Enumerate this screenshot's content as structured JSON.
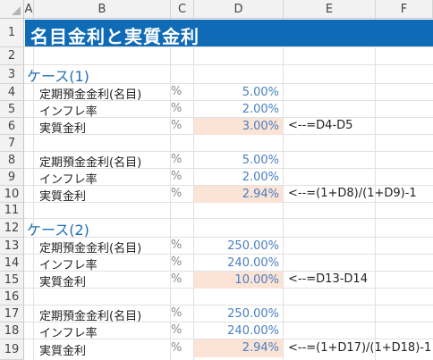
{
  "columns": [
    "A",
    "B",
    "C",
    "D",
    "E",
    "F"
  ],
  "rows": [
    "1",
    "2",
    "3",
    "4",
    "5",
    "6",
    "7",
    "8",
    "9",
    "10",
    "11",
    "12",
    "13",
    "14",
    "15",
    "16",
    "17",
    "18",
    "19"
  ],
  "title": "名目金利と実質金利",
  "case1": {
    "heading": "ケース(1)",
    "blockA": {
      "nominal_label": "定期預金金利(名目)",
      "nominal_unit": "%",
      "nominal_value": "5.00%",
      "inflation_label": "インフレ率",
      "inflation_unit": "%",
      "inflation_value": "2.00%",
      "real_label": "実質金利",
      "real_unit": "%",
      "real_value": "3.00%",
      "real_formula": "<--=D4-D5"
    },
    "blockB": {
      "nominal_label": "定期預金金利(名目)",
      "nominal_unit": "%",
      "nominal_value": "5.00%",
      "inflation_label": "インフレ率",
      "inflation_unit": "%",
      "inflation_value": "2.00%",
      "real_label": "実質金利",
      "real_unit": "%",
      "real_value": "2.94%",
      "real_formula": "<--=(1+D8)/(1+D9)-1"
    }
  },
  "case2": {
    "heading": "ケース(2)",
    "blockA": {
      "nominal_label": "定期預金金利(名目)",
      "nominal_unit": "%",
      "nominal_value": "250.00%",
      "inflation_label": "インフレ率",
      "inflation_unit": "%",
      "inflation_value": "240.00%",
      "real_label": "実質金利",
      "real_unit": "%",
      "real_value": "10.00%",
      "real_formula": "<--=D13-D14"
    },
    "blockB": {
      "nominal_label": "定期預金金利(名目)",
      "nominal_unit": "%",
      "nominal_value": "250.00%",
      "inflation_label": "インフレ率",
      "inflation_unit": "%",
      "inflation_value": "240.00%",
      "real_label": "実質金利",
      "real_unit": "%",
      "real_value": "2.94%",
      "real_formula": "<--=(1+D17)/(1+D18)-1"
    }
  },
  "colors": {
    "title_bg": "#0f6bb5",
    "highlight": "#fbe3d6",
    "value_text": "#4a7fc0",
    "heading_text": "#1f70b4"
  }
}
